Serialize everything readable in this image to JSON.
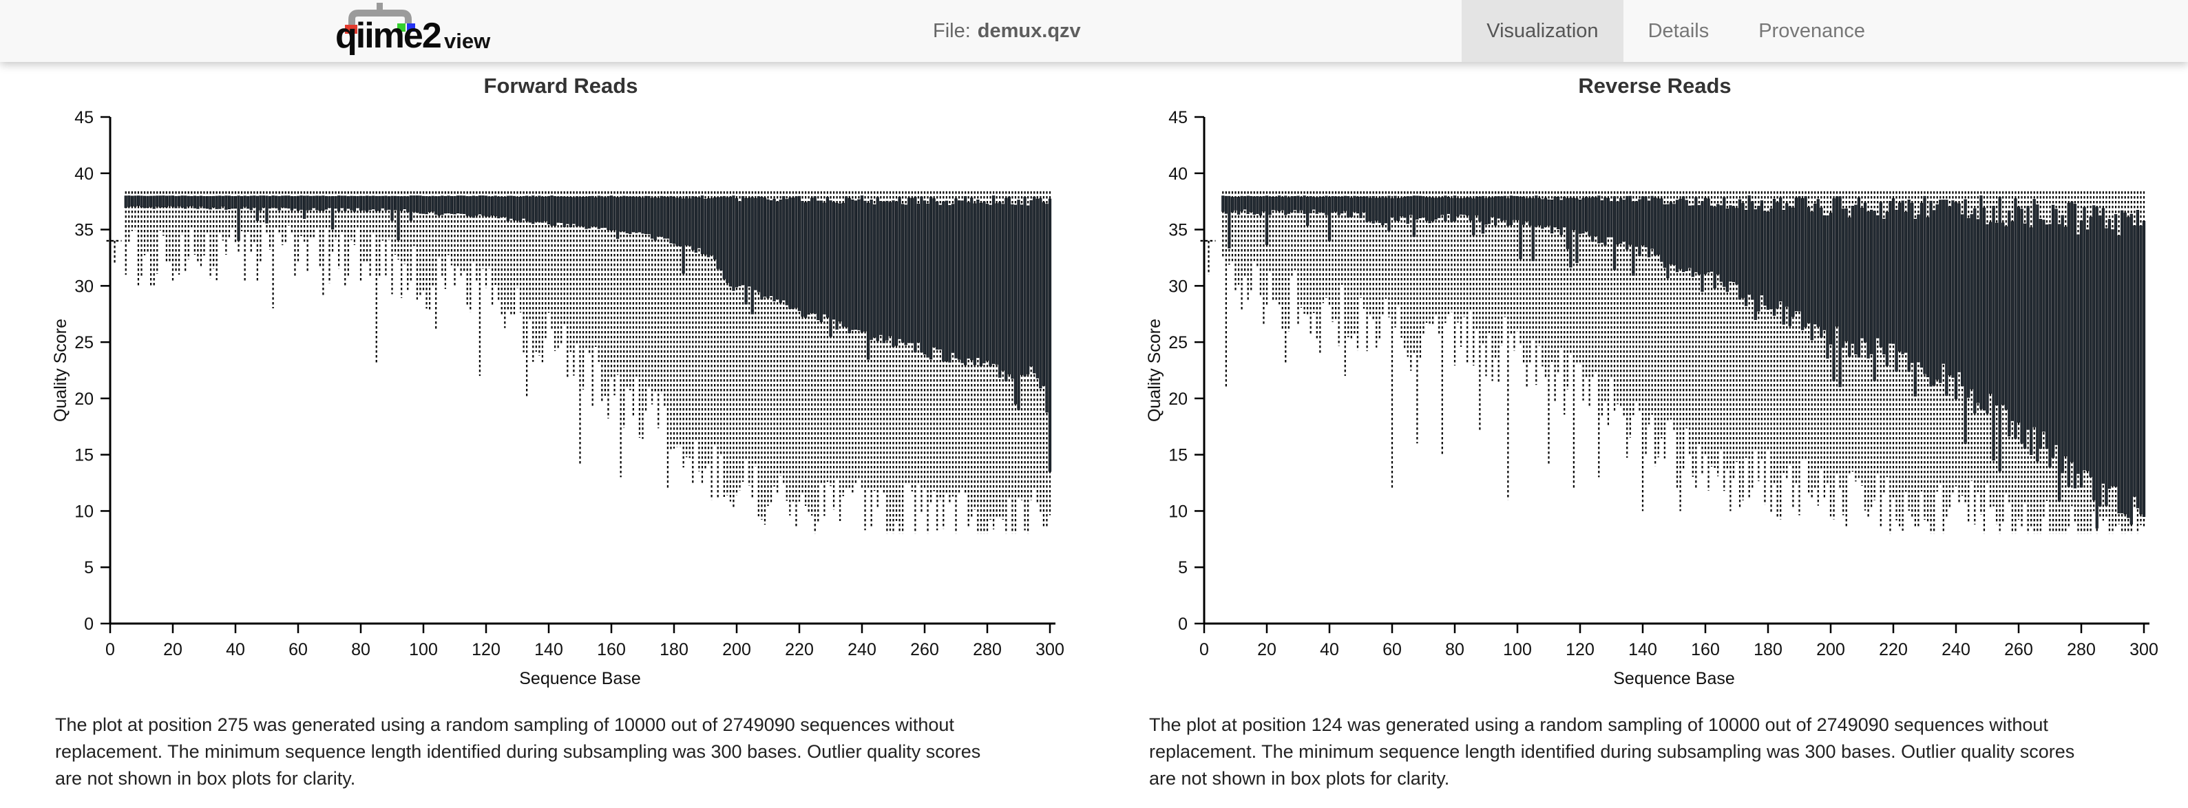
{
  "header": {
    "logo": {
      "text_main": "qiime2",
      "text_sub": "view"
    },
    "file_label": "File:",
    "file_name": "demux.qzv",
    "tabs": [
      {
        "label": "Visualization",
        "active": true
      },
      {
        "label": "Details",
        "active": false
      },
      {
        "label": "Provenance",
        "active": false
      }
    ]
  },
  "colors": {
    "box_fill": "#242c34",
    "box_edge": "#0d1218",
    "whisker": "#000000",
    "axis": "#000000",
    "header_bg": "#f8f8f8",
    "active_tab_bg": "#e4e4e4",
    "logo_red": "#e23b2e",
    "logo_green": "#35d02f",
    "logo_blue": "#2433f2",
    "logo_gray": "#9b9b9b"
  },
  "charts": [
    {
      "title": "Forward Reads",
      "footer": "The plot at position 275 was generated using a random sampling of 10000 out of 2749090 sequences without replacement. The minimum sequence length identified during subsampling was 300 bases. Outlier quality scores are not shown in box plots for clarity.",
      "chart_data": {
        "type": "boxplot",
        "xlabel": "Sequence Base",
        "ylabel": "Quality Score",
        "x_range": [
          0,
          300
        ],
        "y_range": [
          0,
          45
        ],
        "x_ticks": [
          0,
          20,
          40,
          60,
          80,
          100,
          120,
          140,
          160,
          180,
          200,
          220,
          240,
          260,
          280,
          300
        ],
        "y_ticks": [
          0,
          5,
          10,
          15,
          20,
          25,
          30,
          35,
          40,
          45
        ],
        "grid": false,
        "y_floor": 8,
        "series_start": 5,
        "first_position": {
          "x": 1,
          "lo": 32,
          "q1": 33.7,
          "q3": 34,
          "hi": 34
        },
        "anchors": [
          {
            "x": 5,
            "lo": 33,
            "q1": 37.2,
            "q3": 38,
            "hi": 38
          },
          {
            "x": 30,
            "lo": 33,
            "q1": 37.1,
            "q3": 38,
            "hi": 38
          },
          {
            "x": 60,
            "lo": 33,
            "q1": 37.0,
            "q3": 38,
            "hi": 38
          },
          {
            "x": 90,
            "lo": 32,
            "q1": 36.9,
            "q3": 38,
            "hi": 38
          },
          {
            "x": 110,
            "lo": 30,
            "q1": 36.6,
            "q3": 38,
            "hi": 38
          },
          {
            "x": 125,
            "lo": 28,
            "q1": 36.2,
            "q3": 38,
            "hi": 38
          },
          {
            "x": 140,
            "lo": 25,
            "q1": 35.8,
            "q3": 38,
            "hi": 38
          },
          {
            "x": 155,
            "lo": 22,
            "q1": 35.3,
            "q3": 38,
            "hi": 38
          },
          {
            "x": 170,
            "lo": 19,
            "q1": 34.8,
            "q3": 38,
            "hi": 38
          },
          {
            "x": 182,
            "lo": 16,
            "q1": 34.0,
            "q3": 38,
            "hi": 38
          },
          {
            "x": 192,
            "lo": 14,
            "q1": 33.0,
            "q3": 38,
            "hi": 38
          },
          {
            "x": 198,
            "lo": 13,
            "q1": 30.5,
            "q3": 38,
            "hi": 38
          },
          {
            "x": 206,
            "lo": 12,
            "q1": 29.8,
            "q3": 38,
            "hi": 38
          },
          {
            "x": 215,
            "lo": 11,
            "q1": 28.8,
            "q3": 38,
            "hi": 38
          },
          {
            "x": 228,
            "lo": 10.5,
            "q1": 27.5,
            "q3": 38,
            "hi": 38
          },
          {
            "x": 240,
            "lo": 10,
            "q1": 26.5,
            "q3": 38,
            "hi": 38
          },
          {
            "x": 252,
            "lo": 9.5,
            "q1": 25.5,
            "q3": 38,
            "hi": 38
          },
          {
            "x": 265,
            "lo": 9.5,
            "q1": 24.5,
            "q3": 38,
            "hi": 38
          },
          {
            "x": 278,
            "lo": 9,
            "q1": 24.0,
            "q3": 38,
            "hi": 38
          },
          {
            "x": 288,
            "lo": 9,
            "q1": 22.5,
            "q3": 38,
            "hi": 38
          },
          {
            "x": 295,
            "lo": 9,
            "q1": 23.0,
            "q3": 38,
            "hi": 38
          },
          {
            "x": 300,
            "lo": 9,
            "q1": 21.0,
            "q3": 38,
            "hi": 38
          }
        ],
        "whisker_spikes": [
          {
            "x": 9,
            "lo": 30
          },
          {
            "x": 13,
            "lo": 30
          },
          {
            "x": 22,
            "lo": 31
          },
          {
            "x": 34,
            "lo": 30.5
          },
          {
            "x": 52,
            "lo": 28
          },
          {
            "x": 68,
            "lo": 29
          },
          {
            "x": 85,
            "lo": 23
          },
          {
            "x": 104,
            "lo": 26
          },
          {
            "x": 118,
            "lo": 22
          },
          {
            "x": 133,
            "lo": 20
          },
          {
            "x": 150,
            "lo": 14
          },
          {
            "x": 163,
            "lo": 13
          },
          {
            "x": 178,
            "lo": 12
          },
          {
            "x": 192,
            "lo": 11
          }
        ],
        "box_overrides": [
          {
            "x": 205,
            "q1": 27.5
          },
          {
            "x": 230,
            "q1": 25.5
          },
          {
            "x": 289,
            "q1": 19.5
          },
          {
            "x": 290,
            "q1": 19
          },
          {
            "x": 300,
            "q1": 13.5
          }
        ],
        "jitter": {
          "seed": 3,
          "q1": 1.3,
          "lo": 3,
          "q3": 1.2,
          "deep_prob": 0.05,
          "deep_extra": 3
        }
      }
    },
    {
      "title": "Reverse Reads",
      "footer": "The plot at position 124 was generated using a random sampling of 10000 out of 2749090 sequences without replacement. The minimum sequence length identified during subsampling was 300 bases. Outlier quality scores are not shown in box plots for clarity.",
      "chart_data": {
        "type": "boxplot",
        "xlabel": "Sequence Base",
        "ylabel": "Quality Score",
        "x_range": [
          0,
          300
        ],
        "y_range": [
          0,
          45
        ],
        "x_ticks": [
          0,
          20,
          40,
          60,
          80,
          100,
          120,
          140,
          160,
          180,
          200,
          220,
          240,
          260,
          280,
          300
        ],
        "y_ticks": [
          0,
          5,
          10,
          15,
          20,
          25,
          30,
          35,
          40,
          45
        ],
        "grid": false,
        "y_floor": 8,
        "series_start": 6,
        "first_position": {
          "x": 1,
          "lo": 31,
          "q1": 33.7,
          "q3": 34,
          "hi": 34
        },
        "anchors": [
          {
            "x": 6,
            "lo": 30,
            "q1": 37.1,
            "q3": 38,
            "hi": 38
          },
          {
            "x": 25,
            "lo": 29,
            "q1": 37.0,
            "q3": 38,
            "hi": 38
          },
          {
            "x": 45,
            "lo": 27.5,
            "q1": 36.8,
            "q3": 38,
            "hi": 38
          },
          {
            "x": 58,
            "lo": 26,
            "q1": 36.3,
            "q3": 38,
            "hi": 38
          },
          {
            "x": 70,
            "lo": 25,
            "q1": 36.5,
            "q3": 38,
            "hi": 38
          },
          {
            "x": 85,
            "lo": 25,
            "q1": 36.4,
            "q3": 38,
            "hi": 38
          },
          {
            "x": 100,
            "lo": 24,
            "q1": 36.2,
            "q3": 38,
            "hi": 38
          },
          {
            "x": 112,
            "lo": 22,
            "q1": 35.6,
            "q3": 38,
            "hi": 38
          },
          {
            "x": 125,
            "lo": 20,
            "q1": 35.0,
            "q3": 38,
            "hi": 38
          },
          {
            "x": 138,
            "lo": 17,
            "q1": 34.0,
            "q3": 38,
            "hi": 38
          },
          {
            "x": 150,
            "lo": 15,
            "q1": 32.8,
            "q3": 38,
            "hi": 38
          },
          {
            "x": 162,
            "lo": 13.5,
            "q1": 31.3,
            "q3": 38,
            "hi": 38
          },
          {
            "x": 175,
            "lo": 12.5,
            "q1": 29.8,
            "q3": 38,
            "hi": 38
          },
          {
            "x": 188,
            "lo": 12,
            "q1": 28.2,
            "q3": 38,
            "hi": 38
          },
          {
            "x": 200,
            "lo": 11.5,
            "q1": 26.8,
            "q3": 38,
            "hi": 38
          },
          {
            "x": 212,
            "lo": 11,
            "q1": 25.8,
            "q3": 38,
            "hi": 38
          },
          {
            "x": 225,
            "lo": 10.5,
            "q1": 24.6,
            "q3": 38,
            "hi": 38
          },
          {
            "x": 238,
            "lo": 10,
            "q1": 23.0,
            "q3": 38,
            "hi": 38
          },
          {
            "x": 250,
            "lo": 9.5,
            "q1": 21.0,
            "q3": 38,
            "hi": 38
          },
          {
            "x": 262,
            "lo": 9,
            "q1": 18.5,
            "q3": 37.8,
            "hi": 38
          },
          {
            "x": 275,
            "lo": 8.5,
            "q1": 15.5,
            "q3": 37.6,
            "hi": 38
          },
          {
            "x": 288,
            "lo": 8.5,
            "q1": 13.0,
            "q3": 37.4,
            "hi": 38
          },
          {
            "x": 295,
            "lo": 8.5,
            "q1": 12.0,
            "q3": 37.2,
            "hi": 38
          },
          {
            "x": 300,
            "lo": 8.5,
            "q1": 11.0,
            "q3": 37.0,
            "hi": 38
          }
        ],
        "whisker_spikes": [
          {
            "x": 7,
            "lo": 21
          },
          {
            "x": 26,
            "lo": 23
          },
          {
            "x": 37,
            "lo": 24
          },
          {
            "x": 45,
            "lo": 22
          },
          {
            "x": 60,
            "lo": 12
          },
          {
            "x": 68,
            "lo": 16
          },
          {
            "x": 76,
            "lo": 15
          },
          {
            "x": 88,
            "lo": 17
          },
          {
            "x": 97,
            "lo": 11
          },
          {
            "x": 110,
            "lo": 14
          },
          {
            "x": 118,
            "lo": 12
          },
          {
            "x": 126,
            "lo": 13
          },
          {
            "x": 140,
            "lo": 10
          },
          {
            "x": 152,
            "lo": 10
          },
          {
            "x": 168,
            "lo": 10
          }
        ],
        "box_overrides": [
          {
            "x": 159,
            "q1": 29.5
          },
          {
            "x": 176,
            "q1": 27
          },
          {
            "x": 243,
            "q1": 16
          },
          {
            "x": 252,
            "q1": 14.5
          },
          {
            "x": 300,
            "q1": 9.5
          }
        ],
        "jitter": {
          "seed": 11,
          "q1": 3.2,
          "lo": 3,
          "q3": 3.0,
          "deep_prob": 0.08,
          "deep_extra": 4
        }
      }
    }
  ]
}
